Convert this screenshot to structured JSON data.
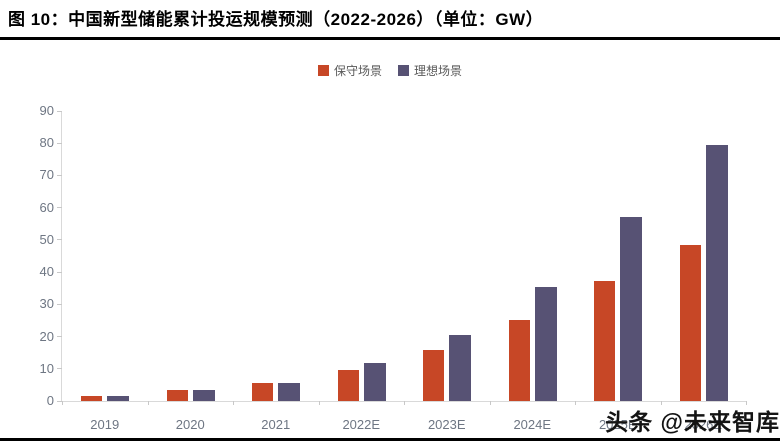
{
  "header": {
    "title": "图 10：中国新型储能累计投运规模预测（2022-2026）（单位：GW）"
  },
  "watermark": {
    "text": "头条 @未来智库"
  },
  "colors": {
    "conservative_bar": "#c74726",
    "ideal_bar": "#575274",
    "axis_line": "#d9d9d9",
    "tick_mark": "#c8c8c8",
    "axis_text": "#6e7683",
    "legend_text": "#595959",
    "divider": "#000000",
    "watermark_text": "#141414"
  },
  "chart_data": {
    "type": "bar",
    "title": "中国新型储能累计投运规模预测（2022-2026）",
    "unit": "GW",
    "categories": [
      "2019",
      "2020",
      "2021",
      "2022E",
      "2023E",
      "2024E",
      "2025E",
      "2026E"
    ],
    "series": [
      {
        "name": "保守场景",
        "color": "#c74726",
        "values": [
          1.7,
          3.3,
          5.7,
          9.7,
          15.9,
          25.1,
          37.4,
          48.5
        ]
      },
      {
        "name": "理想场景",
        "color": "#575274",
        "values": [
          1.7,
          3.3,
          5.7,
          11.8,
          20.4,
          35.5,
          57.0,
          79.5
        ]
      }
    ],
    "xlabel": "",
    "ylabel": "",
    "ylim": [
      0,
      90
    ],
    "yticks": [
      0,
      10,
      20,
      30,
      40,
      50,
      60,
      70,
      80,
      90
    ],
    "legend_position": "top-center",
    "grid": false
  }
}
